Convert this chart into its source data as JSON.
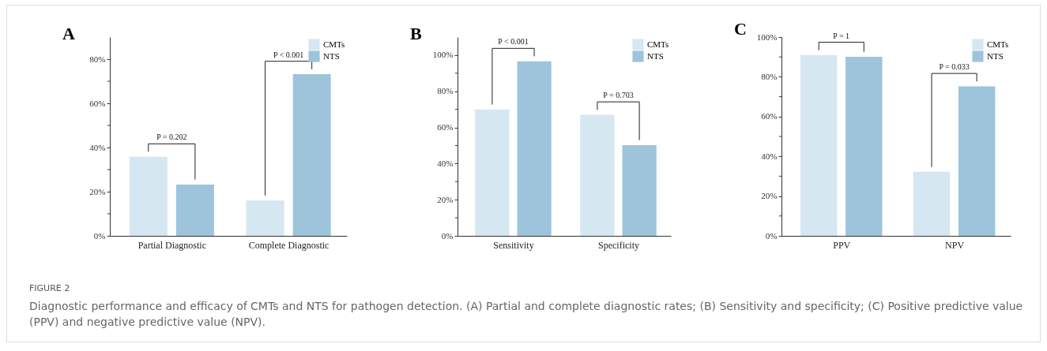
{
  "chart_data": [
    {
      "type": "bar",
      "title": "A",
      "categories": [
        "Partial Diagnostic",
        "Complete Diagnostic"
      ],
      "series": [
        {
          "name": "CMTs",
          "color": "#d5e7f1",
          "values": [
            35.8,
            16.0
          ]
        },
        {
          "name": "NTS",
          "color": "#9dc4da",
          "values": [
            23.2,
            73.2
          ]
        }
      ],
      "ylim": [
        0,
        90
      ],
      "yticks": [
        {
          "value": 0,
          "label": "0%"
        },
        {
          "value": 10,
          "label": null
        },
        {
          "value": 20,
          "label": "20%"
        },
        {
          "value": 30,
          "label": null
        },
        {
          "value": 40,
          "label": "40%"
        },
        {
          "value": 50,
          "label": null
        },
        {
          "value": 60,
          "label": "60%"
        },
        {
          "value": 70,
          "label": null
        },
        {
          "value": 80,
          "label": "80%"
        }
      ],
      "legend": "top right",
      "grid": false,
      "annotations": [
        "P = 0.202",
        "P < 0.001",
        "FIGURE 2",
        "Diagnostic performance and efficacy of CMTs and NTS for pathogen detection. (A) Partial and complete diagnostic rates; (B) Sensitivity and specificity; (C) Positive predictive value (PPV) and negative predictive value (NPV)."
      ]
    },
    {
      "type": "bar",
      "title": "B",
      "categories": [
        "Sensitivity",
        "Specificity"
      ],
      "series": [
        {
          "name": "CMTs",
          "color": "#d5e7f1",
          "values": [
            69.9,
            67.0
          ]
        },
        {
          "name": "NTS",
          "color": "#9dc4da",
          "values": [
            96.6,
            50.2
          ]
        }
      ],
      "ylim": [
        0,
        110
      ],
      "yticks": [
        {
          "value": 0,
          "label": "0%"
        },
        {
          "value": 10,
          "label": null
        },
        {
          "value": 20,
          "label": "20%"
        },
        {
          "value": 30,
          "label": null
        },
        {
          "value": 40,
          "label": "40%"
        },
        {
          "value": 50,
          "label": null
        },
        {
          "value": 60,
          "label": "60%"
        },
        {
          "value": 70,
          "label": null
        },
        {
          "value": 80,
          "label": "80%"
        },
        {
          "value": 90,
          "label": null
        },
        {
          "value": 100,
          "label": "100%"
        }
      ],
      "legend": "top right",
      "grid": false,
      "annotations": [
        "P < 0.001",
        "P = 0.703"
      ]
    },
    {
      "type": "bar",
      "title": "C",
      "categories": [
        "PPV",
        "NPV"
      ],
      "series": [
        {
          "name": "CMTs",
          "color": "#d5e7f1",
          "values": [
            90.9,
            32.2
          ]
        },
        {
          "name": "NTS",
          "color": "#9dc4da",
          "values": [
            90.1,
            75.2
          ]
        }
      ],
      "ylim": [
        0,
        100
      ],
      "yticks": [
        {
          "value": 0,
          "label": "0%"
        },
        {
          "value": 10,
          "label": null
        },
        {
          "value": 20,
          "label": "20%"
        },
        {
          "value": 30,
          "label": null
        },
        {
          "value": 40,
          "label": "40%"
        },
        {
          "value": 50,
          "label": null
        },
        {
          "value": 60,
          "label": "60%"
        },
        {
          "value": 70,
          "label": null
        },
        {
          "value": 80,
          "label": "80%"
        },
        {
          "value": 90,
          "label": null
        },
        {
          "value": 100,
          "label": "100%"
        }
      ],
      "legend": "top right",
      "grid": false,
      "annotations": [
        "P = 1",
        "P = 0.033"
      ]
    }
  ]
}
